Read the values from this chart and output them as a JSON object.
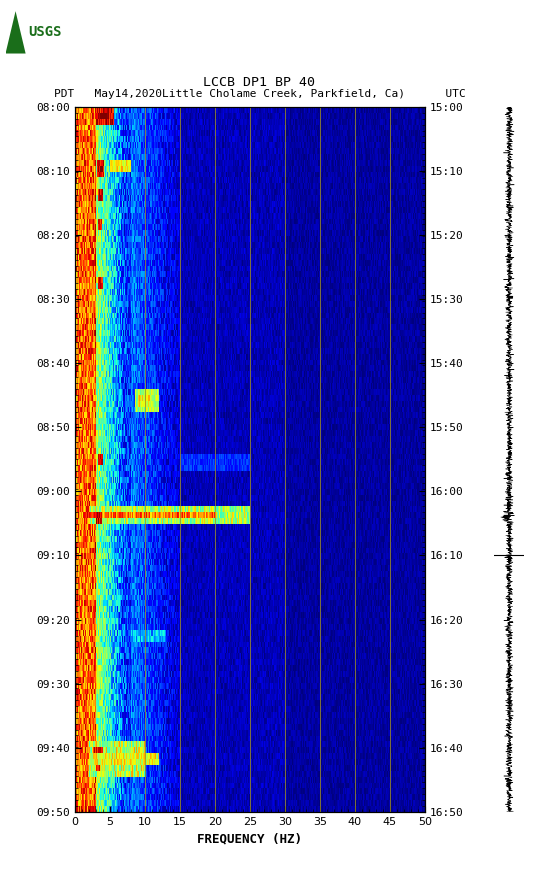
{
  "title_line1": "LCCB DP1 BP 40",
  "title_line2": "PDT   May14,2020Little Cholame Creek, Parkfield, Ca)      UTC",
  "xlabel": "FREQUENCY (HZ)",
  "freq_min": 0,
  "freq_max": 50,
  "time_labels_left": [
    "08:00",
    "08:10",
    "08:20",
    "08:30",
    "08:40",
    "08:50",
    "09:00",
    "09:10",
    "09:20",
    "09:30",
    "09:40",
    "09:50"
  ],
  "time_labels_right": [
    "15:00",
    "15:10",
    "15:20",
    "15:30",
    "15:40",
    "15:50",
    "16:00",
    "16:10",
    "16:20",
    "16:30",
    "16:40",
    "16:50"
  ],
  "xticks": [
    0,
    5,
    10,
    15,
    20,
    25,
    30,
    35,
    40,
    45,
    50
  ],
  "vlines_freq": [
    10,
    15,
    20,
    25,
    30,
    35,
    40,
    45
  ],
  "fig_bg": "#ffffff",
  "fig_width": 5.52,
  "fig_height": 8.92,
  "colormap": "jet",
  "n_time": 120,
  "n_freq": 500
}
